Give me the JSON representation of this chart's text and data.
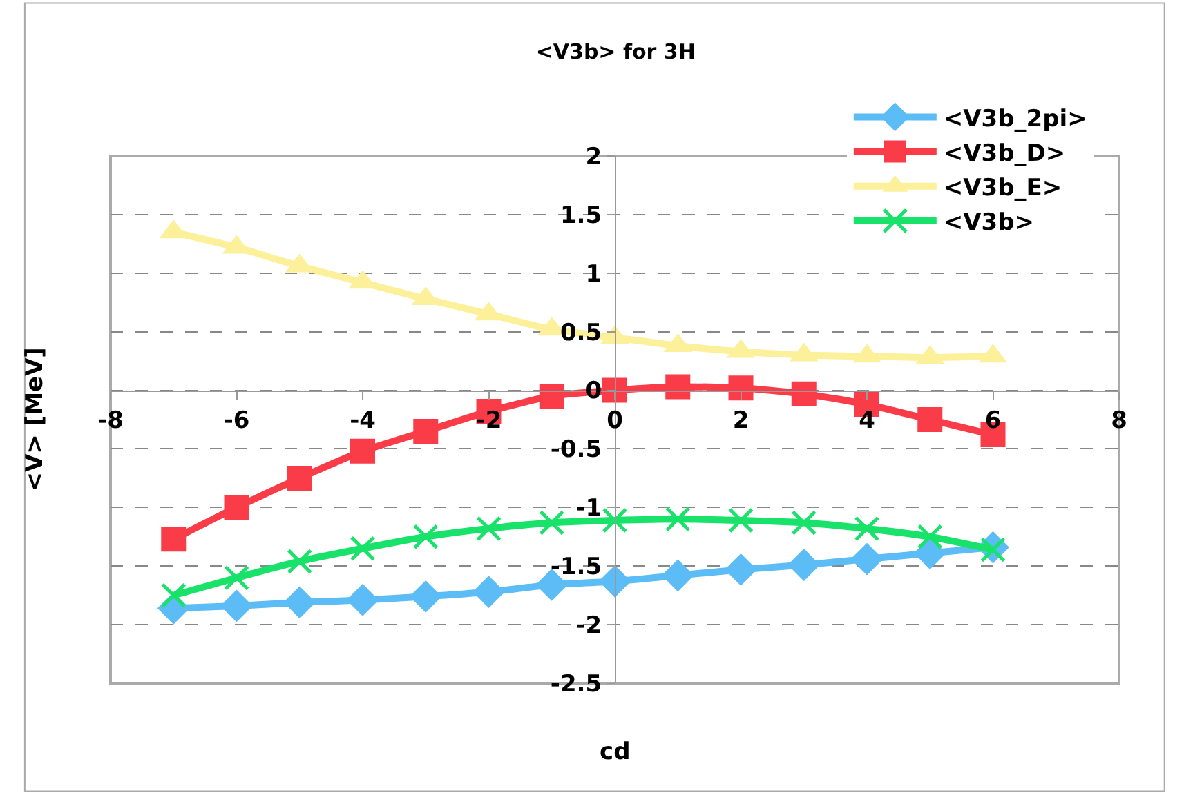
{
  "chart_data": {
    "type": "line",
    "title": "<V3b> for 3H",
    "xlabel": "cd",
    "ylabel": "<V> [MeV]",
    "x": [
      -7,
      -6,
      -5,
      -4,
      -3,
      -2,
      -1,
      0,
      1,
      2,
      3,
      4,
      5,
      6
    ],
    "series": [
      {
        "name": "<V3b_2pi>",
        "color": "#5bbcf6",
        "marker": "diamond",
        "values": [
          -1.86,
          -1.84,
          -1.81,
          -1.79,
          -1.76,
          -1.72,
          -1.66,
          -1.63,
          -1.58,
          -1.53,
          -1.49,
          -1.44,
          -1.39,
          -1.34
        ]
      },
      {
        "name": "<V3b_D>",
        "color": "#f93c48",
        "marker": "square",
        "values": [
          -1.27,
          -1.0,
          -0.75,
          -0.52,
          -0.35,
          -0.18,
          -0.05,
          0.0,
          0.03,
          0.02,
          -0.03,
          -0.12,
          -0.25,
          -0.38
        ]
      },
      {
        "name": "<V3b_E>",
        "color": "#fdf09a",
        "marker": "triangle",
        "values": [
          1.35,
          1.22,
          1.06,
          0.92,
          0.78,
          0.65,
          0.52,
          0.45,
          0.38,
          0.33,
          0.3,
          0.29,
          0.28,
          0.29
        ]
      },
      {
        "name": "<V3b>",
        "color": "#19e26b",
        "marker": "cross",
        "values": [
          -1.75,
          -1.6,
          -1.46,
          -1.35,
          -1.25,
          -1.18,
          -1.13,
          -1.11,
          -1.1,
          -1.11,
          -1.13,
          -1.18,
          -1.25,
          -1.36
        ]
      }
    ],
    "xlim": [
      -8,
      8
    ],
    "xticks": [
      -8,
      -6,
      -4,
      -2,
      0,
      2,
      4,
      6,
      8
    ],
    "ylim": [
      -2.5,
      2
    ],
    "yticks": [
      -2.5,
      -2,
      -1.5,
      -1,
      -0.5,
      0,
      0.5,
      1,
      1.5,
      2
    ],
    "grid": "y",
    "legend": "top right",
    "line_style": "solid"
  }
}
